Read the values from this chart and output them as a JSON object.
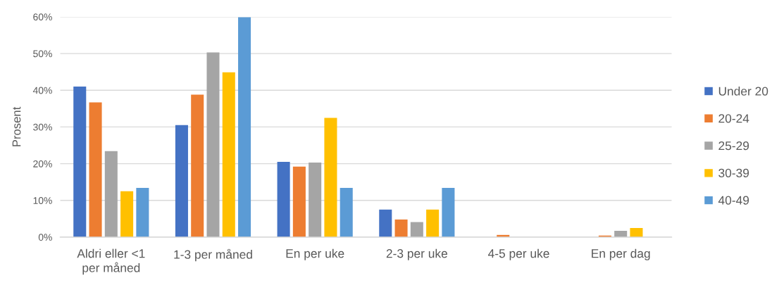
{
  "chart_data": {
    "type": "bar",
    "ylabel": "Prosent",
    "categories": [
      "Aldri eller <1\nper måned",
      "1-3 per måned",
      "En per uke",
      "2-3 per uke",
      "4-5 per uke",
      "En per dag"
    ],
    "series": [
      {
        "name": "Under 20",
        "color": "#4472c4",
        "values": [
          41,
          30.5,
          20.5,
          7.5,
          0,
          0
        ]
      },
      {
        "name": "20-24",
        "color": "#ed7d31",
        "values": [
          36.7,
          38.8,
          19.2,
          4.8,
          0.6,
          0.4
        ]
      },
      {
        "name": "25-29",
        "color": "#a5a5a5",
        "values": [
          23.4,
          50.3,
          20.3,
          4.1,
          0,
          1.7
        ]
      },
      {
        "name": "30-39",
        "color": "#ffc000",
        "values": [
          12.5,
          44.9,
          32.5,
          7.5,
          0,
          2.5
        ]
      },
      {
        "name": "40-49",
        "color": "#5b9bd5",
        "values": [
          13.4,
          59.9,
          13.4,
          13.4,
          0,
          0
        ]
      }
    ],
    "ylim": [
      0,
      60
    ],
    "yticks": [
      {
        "value": 0,
        "label": "0%"
      },
      {
        "value": 10,
        "label": "10%"
      },
      {
        "value": 20,
        "label": "20%"
      },
      {
        "value": 30,
        "label": "30%"
      },
      {
        "value": 40,
        "label": "40%"
      },
      {
        "value": 50,
        "label": "50%"
      },
      {
        "value": 60,
        "label": "60%"
      }
    ],
    "grid": "y",
    "legend": "right"
  }
}
